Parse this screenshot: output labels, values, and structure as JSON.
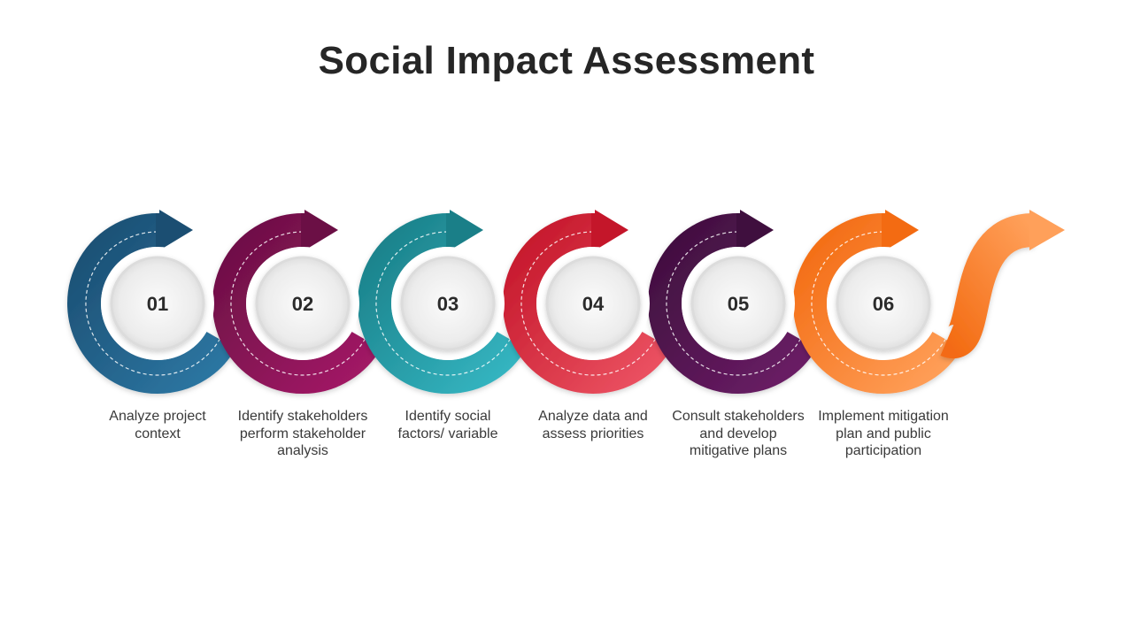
{
  "title": "Social Impact Assessment",
  "steps": [
    {
      "number": "01",
      "text": "Analyze project context",
      "color_dark": "#1b4e72",
      "color_light": "#2d77a3"
    },
    {
      "number": "02",
      "text": "Identify stakeholders perform stakeholder analysis",
      "color_dark": "#6b0f45",
      "color_light": "#a31a66"
    },
    {
      "number": "03",
      "text": "Identify social factors/ variable",
      "color_dark": "#1a7f88",
      "color_light": "#35b6c2"
    },
    {
      "number": "04",
      "text": "Analyze data and assess priorities",
      "color_dark": "#c4162a",
      "color_light": "#ec5363"
    },
    {
      "number": "05",
      "text": "Consult stakeholders and develop mitigative plans",
      "color_dark": "#3f0f3e",
      "color_light": "#6b1d66"
    },
    {
      "number": "06",
      "text": "Implement mitigation plan and public participation",
      "color_dark": "#f36b12",
      "color_light": "#ffa05a"
    }
  ]
}
